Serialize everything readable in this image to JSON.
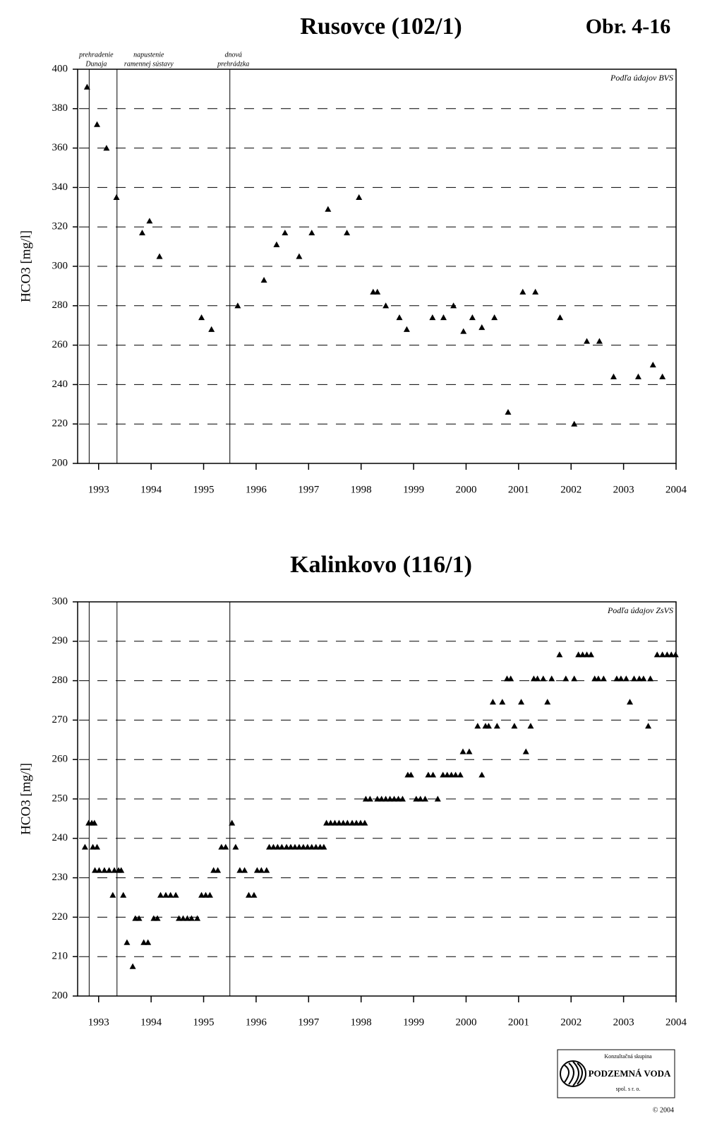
{
  "figure_label": "Obr. 4-16",
  "chart_data": [
    {
      "type": "scatter",
      "title": "Rusovce (102/1)",
      "y_label": "HCO3 [mg/l]",
      "source_note": "Podľa údajov BVS",
      "color": "#000000",
      "marker": "triangle",
      "grid": true,
      "grid_style": "dashed",
      "xlim": [
        1992.6,
        2004
      ],
      "xticks": [
        1993,
        1994,
        1995,
        1996,
        1997,
        1998,
        1999,
        2000,
        2001,
        2002,
        2003,
        2004
      ],
      "ylim": [
        200,
        400
      ],
      "yticks": [
        200,
        220,
        240,
        260,
        280,
        300,
        320,
        340,
        360,
        380,
        400
      ],
      "events": [
        {
          "x": 1992.82,
          "label": [
            "prehradenie",
            "Dunaja"
          ]
        },
        {
          "x": 1993.35,
          "label": [
            "napustenie",
            "ramennej sústavy"
          ]
        },
        {
          "x": 1995.5,
          "label": [
            "dnová",
            "prehrádzka"
          ]
        }
      ],
      "x": [
        1992.78,
        1992.97,
        1993.15,
        1993.34,
        1993.83,
        1993.97,
        1994.16,
        1994.96,
        1995.15,
        1995.65,
        1996.15,
        1996.39,
        1996.55,
        1996.82,
        1997.06,
        1997.37,
        1997.73,
        1997.96,
        1998.23,
        1998.31,
        1998.47,
        1998.73,
        1998.87,
        1999.36,
        1999.57,
        1999.76,
        1999.95,
        2000.12,
        2000.3,
        2000.54,
        2000.8,
        2001.08,
        2001.32,
        2001.79,
        2002.06,
        2002.3,
        2002.54,
        2002.81,
        2003.28,
        2003.56,
        2003.74
      ],
      "values": [
        391,
        372,
        360,
        335,
        317,
        323,
        305,
        274,
        268,
        280,
        293,
        311,
        317,
        305,
        317,
        329,
        317,
        335,
        287,
        287,
        280,
        274,
        268,
        274,
        274,
        280,
        267,
        274,
        269,
        274,
        226,
        287,
        287,
        274,
        220,
        262,
        262,
        244,
        244,
        250,
        244
      ]
    },
    {
      "type": "scatter",
      "title": "Kalinkovo (116/1)",
      "y_label": "HCO3 [mg/l]",
      "source_note": "Podľa údajov ZsVS",
      "color": "#000000",
      "marker": "triangle",
      "grid": true,
      "grid_style": "dashed",
      "xlim": [
        1992.6,
        2004
      ],
      "xticks": [
        1993,
        1994,
        1995,
        1996,
        1997,
        1998,
        1999,
        2000,
        2001,
        2002,
        2003,
        2004
      ],
      "ylim": [
        200,
        300
      ],
      "yticks": [
        200,
        210,
        220,
        230,
        240,
        250,
        260,
        270,
        280,
        290,
        300
      ],
      "vlines": [
        1992.82,
        1993.35,
        1995.5
      ],
      "x": [
        1992.74,
        1992.81,
        1992.87,
        1992.89,
        1992.92,
        1992.93,
        1992.97,
        1993.01,
        1993.11,
        1993.2,
        1993.27,
        1993.3,
        1993.38,
        1993.43,
        1993.47,
        1993.54,
        1993.65,
        1993.7,
        1993.77,
        1993.86,
        1993.94,
        1994.05,
        1994.12,
        1994.18,
        1994.28,
        1994.37,
        1994.47,
        1994.53,
        1994.61,
        1994.69,
        1994.77,
        1994.88,
        1994.96,
        1995.04,
        1995.12,
        1995.19,
        1995.27,
        1995.34,
        1995.42,
        1995.54,
        1995.61,
        1995.69,
        1995.78,
        1995.86,
        1995.96,
        1996.02,
        1996.1,
        1996.2,
        1996.25,
        1996.33,
        1996.41,
        1996.49,
        1996.58,
        1996.66,
        1996.74,
        1996.82,
        1996.9,
        1996.98,
        1997.06,
        1997.14,
        1997.22,
        1997.29,
        1997.34,
        1997.42,
        1997.5,
        1997.58,
        1997.66,
        1997.74,
        1997.83,
        1997.91,
        1997.99,
        1998.07,
        1998.09,
        1998.17,
        1998.31,
        1998.39,
        1998.47,
        1998.55,
        1998.63,
        1998.71,
        1998.79,
        1998.89,
        1998.95,
        1999.05,
        1999.13,
        1999.22,
        1999.28,
        1999.37,
        1999.46,
        1999.56,
        1999.64,
        1999.72,
        1999.8,
        1999.89,
        1999.94,
        2000.06,
        2000.22,
        2000.3,
        2000.37,
        2000.43,
        2000.51,
        2000.59,
        2000.69,
        2000.78,
        2000.85,
        2000.92,
        2001.05,
        2001.14,
        2001.23,
        2001.29,
        2001.36,
        2001.47,
        2001.55,
        2001.63,
        2001.78,
        2001.9,
        2002.06,
        2002.14,
        2002.22,
        2002.3,
        2002.38,
        2002.45,
        2002.52,
        2002.62,
        2002.87,
        2002.95,
        2003.05,
        2003.12,
        2003.2,
        2003.3,
        2003.38,
        2003.47,
        2003.51,
        2003.64,
        2003.74,
        2003.83,
        2003.91,
        2003.99
      ],
      "values": [
        237.8,
        243.9,
        243.9,
        237.8,
        243.9,
        231.9,
        237.8,
        231.9,
        231.9,
        231.9,
        225.6,
        231.9,
        231.9,
        231.9,
        225.6,
        213.6,
        207.5,
        219.7,
        219.7,
        213.6,
        213.6,
        219.7,
        219.7,
        225.6,
        225.6,
        225.6,
        225.6,
        219.7,
        219.7,
        219.7,
        219.7,
        219.7,
        225.6,
        225.6,
        225.6,
        231.9,
        231.9,
        237.8,
        237.8,
        243.9,
        237.8,
        231.9,
        231.9,
        225.6,
        225.6,
        231.9,
        231.9,
        231.9,
        237.8,
        237.8,
        237.8,
        237.8,
        237.8,
        237.8,
        237.8,
        237.8,
        237.8,
        237.8,
        237.8,
        237.8,
        237.8,
        237.8,
        243.9,
        243.9,
        243.9,
        243.9,
        243.9,
        243.9,
        243.9,
        243.9,
        243.9,
        243.9,
        250,
        250,
        250,
        250,
        250,
        250,
        250,
        250,
        250,
        256.1,
        256.1,
        250,
        250,
        250,
        256.1,
        256.1,
        250,
        256.1,
        256.1,
        256.1,
        256.1,
        256.1,
        262,
        262,
        268.5,
        256.1,
        268.5,
        268.5,
        274.6,
        268.5,
        274.6,
        280.5,
        280.5,
        268.5,
        274.6,
        262,
        268.5,
        280.5,
        280.5,
        280.5,
        274.6,
        280.5,
        286.6,
        280.5,
        280.5,
        286.6,
        286.6,
        286.6,
        286.6,
        280.5,
        280.5,
        280.5,
        280.5,
        280.5,
        280.5,
        274.6,
        280.5,
        280.5,
        280.5,
        268.5,
        280.5,
        286.6,
        286.6,
        286.6,
        286.6,
        286.6
      ]
    }
  ],
  "logo": {
    "top": "Konzultačná skupina",
    "name": "PODZEMNÁ VODA",
    "sub": "spol. s r. o.",
    "copyright": "© 2004"
  }
}
